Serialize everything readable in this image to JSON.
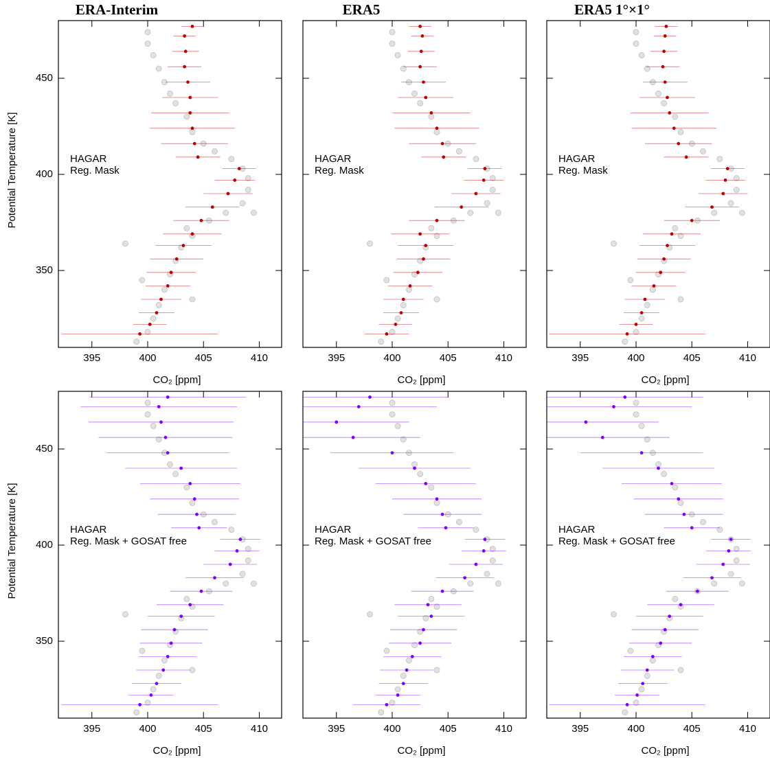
{
  "chart_data": [
    {
      "type": "scatter",
      "title": "ERA-Interim",
      "xlabel": "CO₂ [ppm]",
      "ylabel": "Potential Temperature [K]",
      "xlim": [
        392,
        412
      ],
      "ylim": [
        310,
        480
      ],
      "xticks": [
        395,
        400,
        405,
        410
      ],
      "yticks": [
        350,
        400,
        450
      ],
      "series": [
        {
          "name": "HAGAR",
          "color": "#c8c8c8",
          "x": [
            399,
            400,
            400.5,
            401,
            401.5,
            402,
            402.5,
            403,
            404,
            403.5,
            405.5,
            407,
            408.5,
            409,
            409,
            408.5,
            407.5,
            406,
            405,
            404,
            403.5,
            402.5,
            402,
            401.5,
            401,
            400.5,
            400,
            400,
            409.5,
            398,
            399.5,
            404
          ],
          "y": [
            313,
            318,
            325,
            332,
            340,
            348,
            355,
            362,
            368,
            372,
            376,
            380,
            385,
            392,
            398,
            403,
            408,
            412,
            416,
            422,
            430,
            437,
            442,
            448,
            455,
            462,
            468,
            474,
            380,
            364,
            345,
            335
          ]
        },
        {
          "name": "Reg. Mask",
          "color": "#c00000",
          "x": [
            399.3,
            400.2,
            400.8,
            401.2,
            401.8,
            402.1,
            402.6,
            403.2,
            404,
            404.8,
            405.8,
            407.2,
            407.8,
            408.2,
            404.5,
            404.2,
            404,
            403.8,
            403.8,
            403.6,
            403.3,
            403.4,
            403.3,
            404
          ],
          "y": [
            317,
            322,
            328,
            335,
            342,
            349,
            356,
            363,
            369,
            376,
            383,
            390,
            397,
            403,
            409,
            416,
            424,
            432,
            440,
            448,
            456,
            464,
            472,
            477
          ],
          "xerr": [
            7,
            1.5,
            1.6,
            1.8,
            2,
            2.2,
            2.4,
            2.5,
            2.6,
            2.5,
            2.4,
            2.2,
            1.8,
            1.5,
            2,
            3,
            3.8,
            3.5,
            2.5,
            2,
            1.5,
            1.2,
            1,
            1
          ]
        }
      ]
    },
    {
      "type": "scatter",
      "title": "ERA5",
      "xlabel": "CO₂ [ppm]",
      "xlim": [
        392,
        412
      ],
      "ylim": [
        310,
        480
      ],
      "xticks": [
        395,
        400,
        405,
        410
      ],
      "yticks": [
        350,
        400,
        450
      ],
      "series": [
        {
          "name": "HAGAR",
          "color": "#c8c8c8",
          "x": [
            399,
            400,
            400.5,
            401,
            401.5,
            402,
            402.5,
            403,
            404,
            403.5,
            405.5,
            407,
            408.5,
            409,
            409,
            408.5,
            407.5,
            406,
            405,
            404,
            403.5,
            402.5,
            402,
            401.5,
            401,
            400.5,
            400,
            400,
            409.5,
            398,
            399.5,
            404
          ],
          "y": [
            313,
            318,
            325,
            332,
            340,
            348,
            355,
            362,
            368,
            372,
            376,
            380,
            385,
            392,
            398,
            403,
            408,
            412,
            416,
            422,
            430,
            437,
            442,
            448,
            455,
            462,
            468,
            474,
            380,
            364,
            345,
            335
          ]
        },
        {
          "name": "Reg. Mask",
          "color": "#c00000",
          "x": [
            399.5,
            400.3,
            400.8,
            401,
            401.6,
            402.3,
            402.8,
            403,
            402.5,
            404,
            406.2,
            407.5,
            408.2,
            408.3,
            404.6,
            404.5,
            404,
            403.5,
            403,
            402.8,
            402.5,
            402.6,
            402.7,
            402.5
          ],
          "y": [
            317,
            322,
            328,
            335,
            342,
            349,
            356,
            363,
            369,
            376,
            383,
            390,
            397,
            403,
            409,
            416,
            424,
            432,
            440,
            448,
            456,
            464,
            472,
            477
          ],
          "xerr": [
            2,
            1.5,
            1.6,
            1.8,
            2,
            2.2,
            2.4,
            2.5,
            2.6,
            2.5,
            2.4,
            2.2,
            1.8,
            1.5,
            2,
            3,
            3.8,
            3.5,
            2.5,
            2,
            1.5,
            1.2,
            1,
            1
          ]
        }
      ]
    },
    {
      "type": "scatter",
      "title": "ERA5 1°×1°",
      "xlabel": "CO₂ [ppm]",
      "xlim": [
        392,
        412
      ],
      "ylim": [
        310,
        480
      ],
      "xticks": [
        395,
        400,
        405,
        410
      ],
      "yticks": [
        350,
        400,
        450
      ],
      "series": [
        {
          "name": "HAGAR",
          "color": "#c8c8c8",
          "x": [
            399,
            400,
            400.5,
            401,
            401.5,
            402,
            402.5,
            403,
            404,
            403.5,
            405.5,
            407,
            408.5,
            409,
            409,
            408.5,
            407.5,
            406,
            405,
            404,
            403.5,
            402.5,
            402,
            401.5,
            401,
            400.5,
            400,
            400,
            409.5,
            398,
            399.5,
            404
          ],
          "y": [
            313,
            318,
            325,
            332,
            340,
            348,
            355,
            362,
            368,
            372,
            376,
            380,
            385,
            392,
            398,
            403,
            408,
            412,
            416,
            422,
            430,
            437,
            442,
            448,
            455,
            462,
            468,
            474,
            380,
            364,
            345,
            335
          ]
        },
        {
          "name": "Reg. Mask",
          "color": "#c00000",
          "x": [
            399.2,
            400,
            400.5,
            400.8,
            401.6,
            402.2,
            402.5,
            402.8,
            403.2,
            405,
            406.8,
            407.8,
            408,
            408.2,
            404.5,
            403.8,
            403.4,
            403,
            402.8,
            402.6,
            402.4,
            402.5,
            402.6,
            402.7
          ],
          "y": [
            317,
            322,
            328,
            335,
            342,
            349,
            356,
            363,
            369,
            376,
            383,
            390,
            397,
            403,
            409,
            416,
            424,
            432,
            440,
            448,
            456,
            464,
            472,
            477
          ],
          "xerr": [
            7,
            1.5,
            1.6,
            1.8,
            2,
            2.2,
            2.4,
            2.5,
            2.6,
            2.5,
            2.4,
            2.2,
            1.8,
            1.5,
            2,
            3,
            3.8,
            3.5,
            2.5,
            2,
            1.5,
            1.2,
            1,
            1
          ]
        }
      ]
    },
    {
      "type": "scatter",
      "xlabel": "CO₂ [ppm]",
      "ylabel": "Potential Temperature [K]",
      "xlim": [
        392,
        412
      ],
      "ylim": [
        310,
        480
      ],
      "xticks": [
        395,
        400,
        405,
        410
      ],
      "yticks": [
        350,
        400,
        450
      ],
      "series": [
        {
          "name": "HAGAR",
          "color": "#c8c8c8",
          "x": [
            399,
            400,
            400.5,
            401,
            401.5,
            402,
            402.5,
            403,
            404,
            403.5,
            405.5,
            407,
            408.5,
            409,
            409,
            408.5,
            407.5,
            406,
            405,
            404,
            403.5,
            402.5,
            402,
            401.5,
            401,
            400.5,
            400,
            400,
            409.5,
            398,
            399.5,
            404
          ],
          "y": [
            313,
            318,
            325,
            332,
            340,
            348,
            355,
            362,
            368,
            372,
            376,
            380,
            385,
            392,
            398,
            403,
            408,
            412,
            416,
            422,
            430,
            437,
            442,
            448,
            455,
            462,
            468,
            474,
            380,
            364,
            345,
            335
          ]
        },
        {
          "name": "Reg. Mask + GOSAT free",
          "color": "#8000ff",
          "x": [
            399.3,
            400.3,
            400.8,
            401.4,
            401.8,
            402.1,
            402.4,
            403,
            403.8,
            404.8,
            406,
            407.4,
            408,
            408.3,
            404.6,
            404.4,
            404.2,
            403.8,
            403,
            401.8,
            401.6,
            401.2,
            401,
            401.8
          ],
          "y": [
            317,
            322,
            328,
            335,
            342,
            349,
            356,
            363,
            369,
            376,
            383,
            390,
            397,
            403,
            409,
            416,
            424,
            432,
            440,
            448,
            456,
            464,
            472,
            477
          ],
          "xerr": [
            7,
            2,
            2.2,
            2.4,
            2.6,
            2.8,
            3,
            3,
            3,
            2.8,
            2.6,
            2.4,
            2,
            1.8,
            2.5,
            3.5,
            4,
            4.5,
            5,
            5.5,
            6,
            6.5,
            7,
            7
          ]
        }
      ]
    },
    {
      "type": "scatter",
      "xlabel": "CO₂ [ppm]",
      "xlim": [
        392,
        412
      ],
      "ylim": [
        310,
        480
      ],
      "xticks": [
        395,
        400,
        405,
        410
      ],
      "yticks": [
        350,
        400,
        450
      ],
      "series": [
        {
          "name": "HAGAR",
          "color": "#c8c8c8",
          "x": [
            399,
            400,
            400.5,
            401,
            401.5,
            402,
            402.5,
            403,
            404,
            403.5,
            405.5,
            407,
            408.5,
            409,
            409,
            408.5,
            407.5,
            406,
            405,
            404,
            403.5,
            402.5,
            402,
            401.5,
            401,
            400.5,
            400,
            400,
            409.5,
            398,
            399.5,
            404
          ],
          "y": [
            313,
            318,
            325,
            332,
            340,
            348,
            355,
            362,
            368,
            372,
            376,
            380,
            385,
            392,
            398,
            403,
            408,
            412,
            416,
            422,
            430,
            437,
            442,
            448,
            455,
            462,
            468,
            474,
            380,
            364,
            345,
            335
          ]
        },
        {
          "name": "Reg. Mask + GOSAT free",
          "color": "#8000ff",
          "x": [
            399.5,
            400.5,
            401,
            401.3,
            401.8,
            402.5,
            402.8,
            403.5,
            403.2,
            404.5,
            406.5,
            407.5,
            408.2,
            408.3,
            404.8,
            404.5,
            404,
            403,
            402,
            400,
            396.5,
            395,
            397,
            398
          ],
          "y": [
            317,
            322,
            328,
            335,
            342,
            349,
            356,
            363,
            369,
            376,
            383,
            390,
            397,
            403,
            409,
            416,
            424,
            432,
            440,
            448,
            456,
            464,
            472,
            477
          ],
          "xerr": [
            3,
            2,
            2.2,
            2.4,
            2.6,
            2.8,
            3,
            3,
            3,
            2.8,
            2.6,
            2.4,
            2,
            1.8,
            2.5,
            3.5,
            4,
            4.5,
            5,
            5.5,
            6,
            6.5,
            7,
            7
          ]
        }
      ]
    },
    {
      "type": "scatter",
      "xlabel": "CO₂ [ppm]",
      "xlim": [
        392,
        412
      ],
      "ylim": [
        310,
        480
      ],
      "xticks": [
        395,
        400,
        405,
        410
      ],
      "yticks": [
        350,
        400,
        450
      ],
      "series": [
        {
          "name": "HAGAR",
          "color": "#c8c8c8",
          "x": [
            399,
            400,
            400.5,
            401,
            401.5,
            402,
            402.5,
            403,
            404,
            403.5,
            405.5,
            407,
            408.5,
            409,
            409,
            408.5,
            407.5,
            406,
            405,
            404,
            403.5,
            402.5,
            402,
            401.5,
            401,
            400.5,
            400,
            400,
            409.5,
            398,
            399.5,
            404
          ],
          "y": [
            313,
            318,
            325,
            332,
            340,
            348,
            355,
            362,
            368,
            372,
            376,
            380,
            385,
            392,
            398,
            403,
            408,
            412,
            416,
            422,
            430,
            437,
            442,
            448,
            455,
            462,
            468,
            474,
            380,
            364,
            345,
            335
          ]
        },
        {
          "name": "Reg. Mask + GOSAT free",
          "color": "#8000ff",
          "x": [
            399.2,
            400.1,
            400.6,
            401,
            401.5,
            402.2,
            402.6,
            403,
            404,
            405.5,
            406.8,
            407.8,
            408.3,
            408.5,
            405,
            404.3,
            403.8,
            403.2,
            402,
            400.5,
            397,
            395.5,
            398,
            399
          ],
          "y": [
            317,
            322,
            328,
            335,
            342,
            349,
            356,
            363,
            369,
            376,
            383,
            390,
            397,
            403,
            409,
            416,
            424,
            432,
            440,
            448,
            456,
            464,
            472,
            477
          ],
          "xerr": [
            7,
            2,
            2.2,
            2.4,
            2.6,
            2.8,
            3,
            3,
            3,
            2.8,
            2.6,
            2.4,
            2,
            1.8,
            2.5,
            3.5,
            4,
            4.5,
            5,
            5.5,
            6,
            6.5,
            7,
            7
          ]
        }
      ]
    }
  ]
}
